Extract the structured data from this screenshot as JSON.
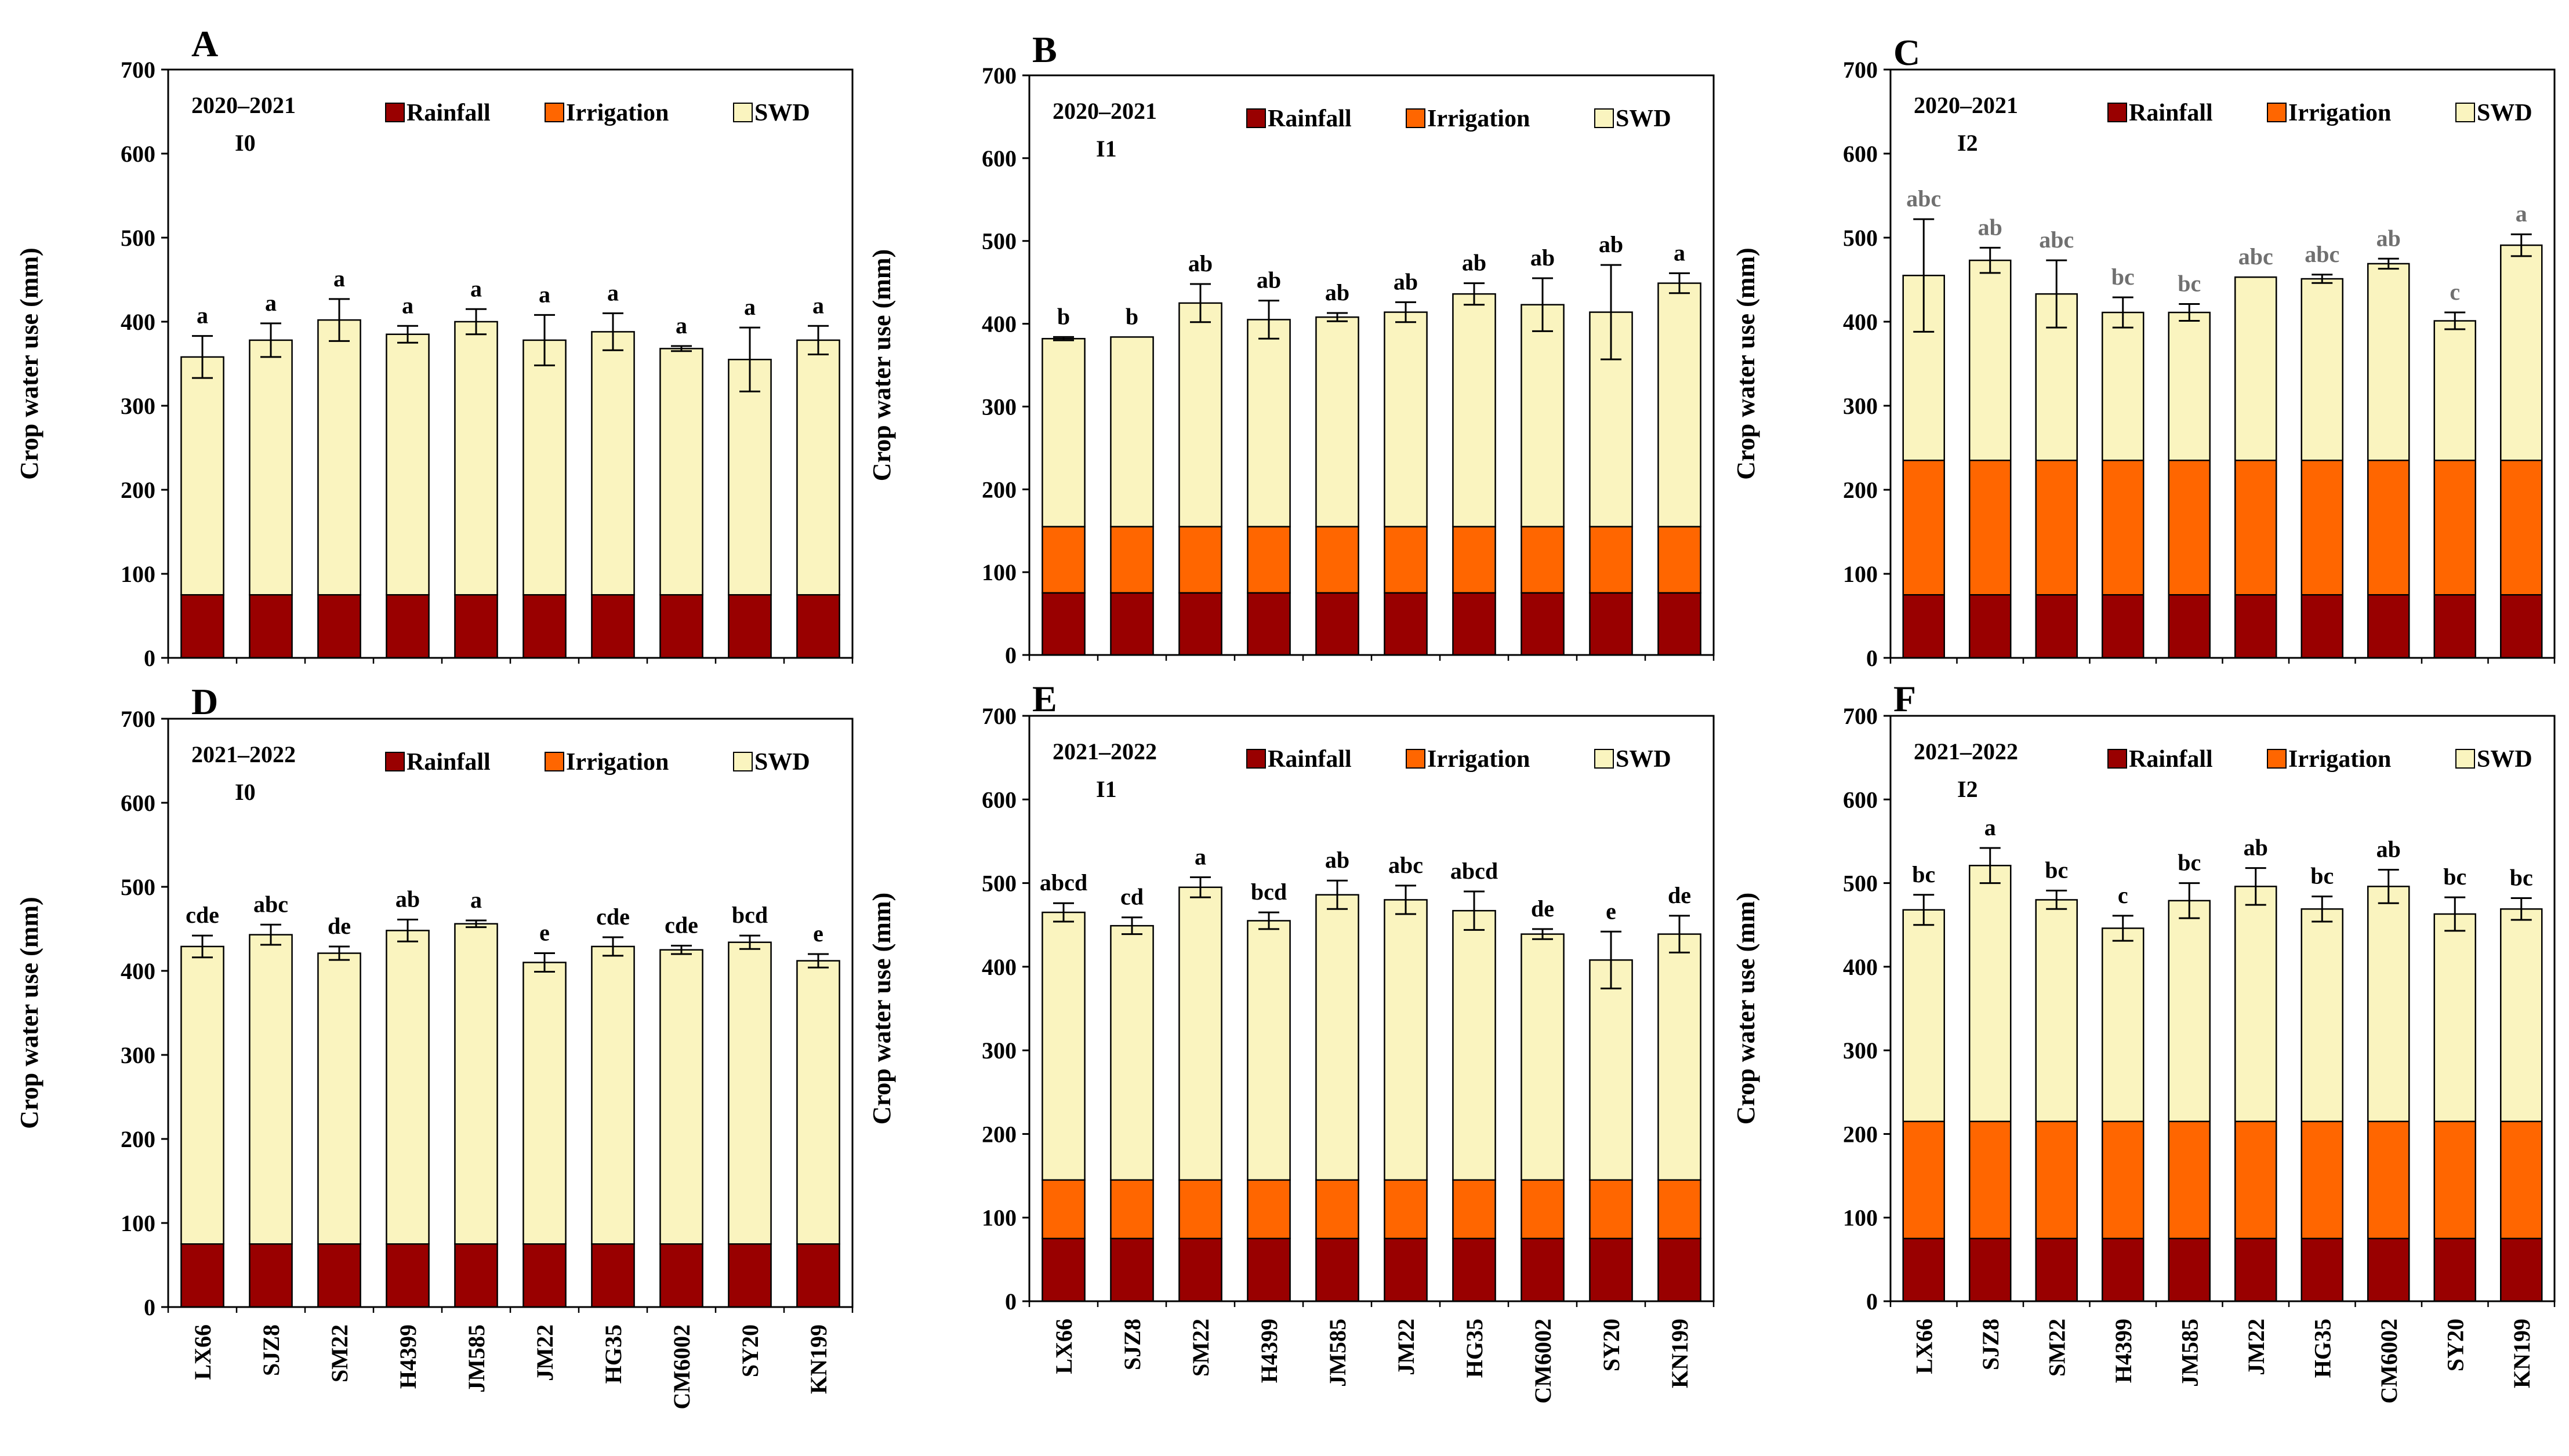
{
  "colors": {
    "rainfall": "#990000",
    "irrigation": "#FF6600",
    "swd": "#FAF4BF",
    "axis": "#000000",
    "sig_dark": "#000000",
    "sig_gray": "#707070"
  },
  "chart_data": [
    {
      "panel": "A",
      "type": "bar",
      "stacked": true,
      "season": "2020–2021",
      "treatment": "I0",
      "ylabel": "Crop water use (mm)",
      "ylim": [
        0,
        700
      ],
      "yticks": [
        "0",
        "100",
        "200",
        "300",
        "400",
        "500",
        "600",
        "700"
      ],
      "categories": [
        "LX66",
        "SJZ8",
        "SM22",
        "H4399",
        "JM585",
        "JM22",
        "HG35",
        "CM6002",
        "SY20",
        "KN199"
      ],
      "series": [
        {
          "name": "Rainfall",
          "values": [
            75,
            75,
            75,
            75,
            75,
            75,
            75,
            75,
            75,
            75
          ]
        },
        {
          "name": "Irrigation",
          "values": [
            0,
            0,
            0,
            0,
            0,
            0,
            0,
            0,
            0,
            0
          ]
        },
        {
          "name": "SWD",
          "values": [
            283,
            303,
            327,
            310,
            325,
            303,
            313,
            293,
            280,
            303
          ]
        }
      ],
      "totals": [
        358,
        378,
        402,
        385,
        400,
        378,
        388,
        368,
        355,
        378
      ],
      "errors": [
        25,
        20,
        25,
        10,
        15,
        30,
        22,
        3,
        38,
        17
      ],
      "letters": [
        "a",
        "a",
        "a",
        "a",
        "a",
        "a",
        "a",
        "a",
        "a",
        "a"
      ],
      "letter_style": "dark"
    },
    {
      "panel": "B",
      "type": "bar",
      "stacked": true,
      "season": "2020–2021",
      "treatment": "I1",
      "ylabel": "Crop water use (mm)",
      "ylim": [
        0,
        700
      ],
      "yticks": [
        "0",
        "100",
        "200",
        "300",
        "400",
        "500",
        "600",
        "700"
      ],
      "categories": [
        "LX66",
        "SJZ8",
        "SM22",
        "H4399",
        "JM585",
        "JM22",
        "HG35",
        "CM6002",
        "SY20",
        "KN199"
      ],
      "series": [
        {
          "name": "Rainfall",
          "values": [
            75,
            75,
            75,
            75,
            75,
            75,
            75,
            75,
            75,
            75
          ]
        },
        {
          "name": "Irrigation",
          "values": [
            80,
            80,
            80,
            80,
            80,
            80,
            80,
            80,
            80,
            80
          ]
        },
        {
          "name": "SWD",
          "values": [
            227,
            229,
            270,
            250,
            253,
            259,
            281,
            268,
            259,
            294
          ]
        }
      ],
      "totals": [
        382,
        384,
        425,
        405,
        408,
        414,
        436,
        423,
        414,
        449
      ],
      "errors": [
        2,
        0,
        23,
        23,
        5,
        12,
        13,
        32,
        57,
        12
      ],
      "letters": [
        "b",
        "b",
        "ab",
        "ab",
        "ab",
        "ab",
        "ab",
        "ab",
        "ab",
        "a"
      ],
      "letter_style": "dark"
    },
    {
      "panel": "C",
      "type": "bar",
      "stacked": true,
      "season": "2020–2021",
      "treatment": "I2",
      "ylabel": "Crop water use (mm)",
      "ylim": [
        0,
        700
      ],
      "yticks": [
        "0",
        "100",
        "200",
        "300",
        "400",
        "500",
        "600",
        "700"
      ],
      "categories": [
        "LX66",
        "SJZ8",
        "SM22",
        "H4399",
        "JM585",
        "JM22",
        "HG35",
        "CM6002",
        "SY20",
        "KN199"
      ],
      "series": [
        {
          "name": "Rainfall",
          "values": [
            75,
            75,
            75,
            75,
            75,
            75,
            75,
            75,
            75,
            75
          ]
        },
        {
          "name": "Irrigation",
          "values": [
            160,
            160,
            160,
            160,
            160,
            160,
            160,
            160,
            160,
            160
          ]
        },
        {
          "name": "SWD",
          "values": [
            220,
            238,
            198,
            176,
            176,
            218,
            216,
            234,
            166,
            256
          ]
        }
      ],
      "totals": [
        455,
        473,
        433,
        411,
        411,
        453,
        451,
        469,
        401,
        491
      ],
      "errors": [
        67,
        15,
        40,
        18,
        10,
        0,
        5,
        6,
        10,
        13
      ],
      "letters": [
        "abc",
        "ab",
        "abc",
        "bc",
        "bc",
        "abc",
        "abc",
        "ab",
        "c",
        "a"
      ],
      "letter_style": "gray"
    },
    {
      "panel": "D",
      "type": "bar",
      "stacked": true,
      "season": "2021–2022",
      "treatment": "I0",
      "ylabel": "Crop water use (mm)",
      "ylim": [
        0,
        700
      ],
      "yticks": [
        "0",
        "100",
        "200",
        "300",
        "400",
        "500",
        "600",
        "700"
      ],
      "categories": [
        "LX66",
        "SJZ8",
        "SM22",
        "H4399",
        "JM585",
        "JM22",
        "HG35",
        "CM6002",
        "SY20",
        "KN199"
      ],
      "series": [
        {
          "name": "Rainfall",
          "values": [
            75,
            75,
            75,
            75,
            75,
            75,
            75,
            75,
            75,
            75
          ]
        },
        {
          "name": "Irrigation",
          "values": [
            0,
            0,
            0,
            0,
            0,
            0,
            0,
            0,
            0,
            0
          ]
        },
        {
          "name": "SWD",
          "values": [
            354,
            368,
            346,
            373,
            381,
            335,
            354,
            350,
            359,
            337
          ]
        }
      ],
      "totals": [
        429,
        443,
        421,
        448,
        456,
        410,
        429,
        425,
        434,
        412
      ],
      "errors": [
        13,
        12,
        8,
        13,
        4,
        11,
        11,
        5,
        8,
        8
      ],
      "letters": [
        "cde",
        "abc",
        "de",
        "ab",
        "a",
        "e",
        "cde",
        "cde",
        "bcd",
        "e"
      ],
      "letter_style": "dark"
    },
    {
      "panel": "E",
      "type": "bar",
      "stacked": true,
      "season": "2021–2022",
      "treatment": "I1",
      "ylabel": "Crop water use (mm)",
      "ylim": [
        0,
        700
      ],
      "yticks": [
        "0",
        "100",
        "200",
        "300",
        "400",
        "500",
        "600",
        "700"
      ],
      "categories": [
        "LX66",
        "SJZ8",
        "SM22",
        "H4399",
        "JM585",
        "JM22",
        "HG35",
        "CM6002",
        "SY20",
        "KN199"
      ],
      "series": [
        {
          "name": "Rainfall",
          "values": [
            75,
            75,
            75,
            75,
            75,
            75,
            75,
            75,
            75,
            75
          ]
        },
        {
          "name": "Irrigation",
          "values": [
            70,
            70,
            70,
            70,
            70,
            70,
            70,
            70,
            70,
            70
          ]
        },
        {
          "name": "SWD",
          "values": [
            320,
            304,
            350,
            310,
            341,
            335,
            322,
            294,
            263,
            294
          ]
        }
      ],
      "totals": [
        465,
        449,
        495,
        455,
        486,
        480,
        467,
        439,
        408,
        439
      ],
      "errors": [
        11,
        10,
        12,
        10,
        17,
        17,
        23,
        6,
        34,
        22
      ],
      "letters": [
        "abcd",
        "cd",
        "a",
        "bcd",
        "ab",
        "abc",
        "abcd",
        "de",
        "e",
        "de"
      ],
      "letter_style": "dark"
    },
    {
      "panel": "F",
      "type": "bar",
      "stacked": true,
      "season": "2021–2022",
      "treatment": "I2",
      "ylabel": "Crop water use (mm)",
      "ylim": [
        0,
        700
      ],
      "yticks": [
        "0",
        "100",
        "200",
        "300",
        "400",
        "500",
        "600",
        "700"
      ],
      "categories": [
        "LX66",
        "SJZ8",
        "SM22",
        "H4399",
        "JM585",
        "JM22",
        "HG35",
        "CM6002",
        "SY20",
        "KN199"
      ],
      "series": [
        {
          "name": "Rainfall",
          "values": [
            75,
            75,
            75,
            75,
            75,
            75,
            75,
            75,
            75,
            75
          ]
        },
        {
          "name": "Irrigation",
          "values": [
            140,
            140,
            140,
            140,
            140,
            140,
            140,
            140,
            140,
            140
          ]
        },
        {
          "name": "SWD",
          "values": [
            253,
            306,
            265,
            231,
            264,
            281,
            254,
            281,
            248,
            254
          ]
        }
      ],
      "totals": [
        468,
        521,
        480,
        446,
        479,
        496,
        469,
        496,
        463,
        469
      ],
      "errors": [
        18,
        21,
        11,
        15,
        21,
        22,
        15,
        20,
        20,
        13
      ],
      "letters": [
        "bc",
        "a",
        "bc",
        "c",
        "bc",
        "ab",
        "bc",
        "ab",
        "bc",
        "bc"
      ],
      "letter_style": "dark"
    }
  ]
}
